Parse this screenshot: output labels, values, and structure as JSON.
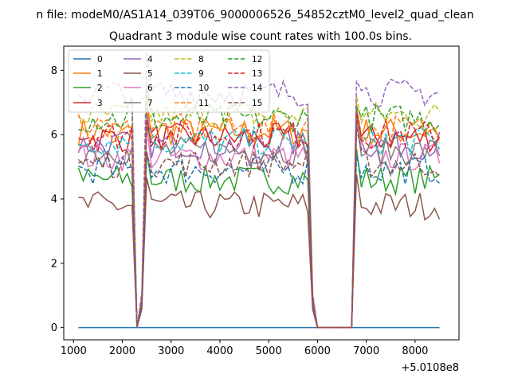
{
  "chart_data": {
    "type": "line",
    "suptitle": "n file: modeM0/AS1A14_039T06_9000006526_54852cztM0_level2_quad_clean",
    "title": "Quadrant 3 module wise count rates with 100.0s bins.",
    "xlabel": "",
    "ylabel": "",
    "x_offset_label": "+5.0108e8",
    "xlim": [
      800,
      8900
    ],
    "ylim": [
      -0.38,
      8.75
    ],
    "xticks": [
      1000,
      2000,
      3000,
      4000,
      5000,
      6000,
      7000,
      8000
    ],
    "yticks": [
      0,
      2,
      4,
      6,
      8
    ],
    "grid": false,
    "legend_position": "upper-left",
    "legend_columns": 4,
    "x": {
      "start": 1100,
      "step": 100,
      "count": 75
    },
    "gaps": [
      {
        "x_start": 2250,
        "x_end": 2350,
        "value": 0
      },
      {
        "x_start": 6000,
        "x_end": 6750,
        "value": 0
      }
    ],
    "recovery_points": [
      2400,
      2500,
      5900,
      6800
    ],
    "series": [
      {
        "name": "0",
        "color": "#1f77b4",
        "dash": "solid",
        "mean": 0.0
      },
      {
        "name": "1",
        "color": "#ff7f0e",
        "dash": "solid",
        "mean": 6.1
      },
      {
        "name": "2",
        "color": "#2ca02c",
        "dash": "solid",
        "mean": 4.6
      },
      {
        "name": "3",
        "color": "#d62728",
        "dash": "solid",
        "mean": 5.9
      },
      {
        "name": "4",
        "color": "#9467bd",
        "dash": "solid",
        "mean": 5.7
      },
      {
        "name": "5",
        "color": "#8c564b",
        "dash": "solid",
        "mean": 3.8
      },
      {
        "name": "6",
        "color": "#e377c2",
        "dash": "solid",
        "mean": 5.3
      },
      {
        "name": "7",
        "color": "#7f7f7f",
        "dash": "solid",
        "mean": 5.5
      },
      {
        "name": "8",
        "color": "#bcbd22",
        "dash": "dashed",
        "mean": 6.6
      },
      {
        "name": "9",
        "color": "#17becf",
        "dash": "dashed",
        "mean": 5.8
      },
      {
        "name": "10",
        "color": "#1f77b4",
        "dash": "dashed",
        "mean": 4.9
      },
      {
        "name": "11",
        "color": "#ff7f0e",
        "dash": "dashed",
        "mean": 6.2
      },
      {
        "name": "12",
        "color": "#2ca02c",
        "dash": "dashed",
        "mean": 6.5
      },
      {
        "name": "13",
        "color": "#d62728",
        "dash": "dashed",
        "mean": 6.0
      },
      {
        "name": "14",
        "color": "#9467bd",
        "dash": "dashed",
        "mean": 7.3
      },
      {
        "name": "15",
        "color": "#8c564b",
        "dash": "dashed",
        "mean": 5.1
      }
    ]
  }
}
